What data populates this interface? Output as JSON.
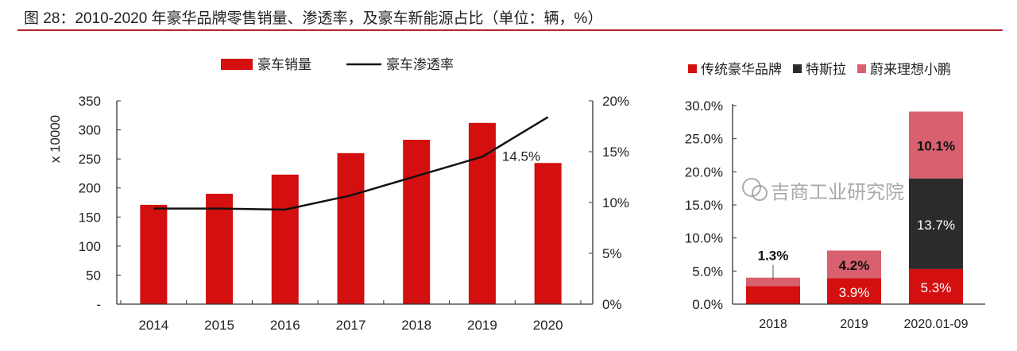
{
  "title": "图 28：2010-2020 年豪华品牌零售销量、渗透率，及豪车新能源占比（单位：辆，%）",
  "watermark": "吉商工业研究院",
  "chart_data": [
    {
      "type": "bar+line",
      "categories": [
        "2014",
        "2015",
        "2016",
        "2017",
        "2018",
        "2019",
        "2020"
      ],
      "ylabel": "x 10000",
      "ylim": [
        0,
        350
      ],
      "yticks": [
        "-",
        "50",
        "100",
        "150",
        "200",
        "250",
        "300",
        "350"
      ],
      "y2lim": [
        0,
        20
      ],
      "y2ticks": [
        "0%",
        "5%",
        "10%",
        "15%",
        "20%"
      ],
      "legend_placement": "top",
      "series": [
        {
          "name": "豪车销量",
          "type": "bar",
          "color": "#d40f0f",
          "values": [
            171,
            190,
            223,
            260,
            283,
            312,
            243
          ]
        },
        {
          "name": "豪车渗透率",
          "type": "line",
          "axis": "right",
          "color": "#111111",
          "values": [
            9.4,
            9.4,
            9.3,
            10.7,
            12.6,
            14.5,
            18.4
          ]
        }
      ],
      "annotations": [
        {
          "category": "2019",
          "text": "14.5%"
        }
      ]
    },
    {
      "type": "stacked-bar",
      "categories": [
        "2018",
        "2019",
        "2020.01-09"
      ],
      "ylim": [
        0,
        30
      ],
      "yticks": [
        "0.0%",
        "5.0%",
        "10.0%",
        "15.0%",
        "20.0%",
        "25.0%",
        "30.0%"
      ],
      "legend_placement": "top",
      "series": [
        {
          "name": "传统豪华品牌",
          "color": "#d40f0f",
          "values": [
            2.7,
            3.9,
            5.3
          ],
          "labels": [
            "",
            "3.9%",
            "5.3%"
          ],
          "label_color": "#ffffff"
        },
        {
          "name": "特斯拉",
          "color": "#2b2b2b",
          "values": [
            0,
            0,
            13.7
          ],
          "labels": [
            "",
            "",
            "13.7%"
          ],
          "label_color": "#ffffff"
        },
        {
          "name": "蔚来理想小鹏",
          "color": "#d9606e",
          "values": [
            1.3,
            4.2,
            10.1
          ],
          "labels": [
            "1.3%",
            "4.2%",
            "10.1%"
          ],
          "label_color": "#111111"
        }
      ]
    }
  ]
}
